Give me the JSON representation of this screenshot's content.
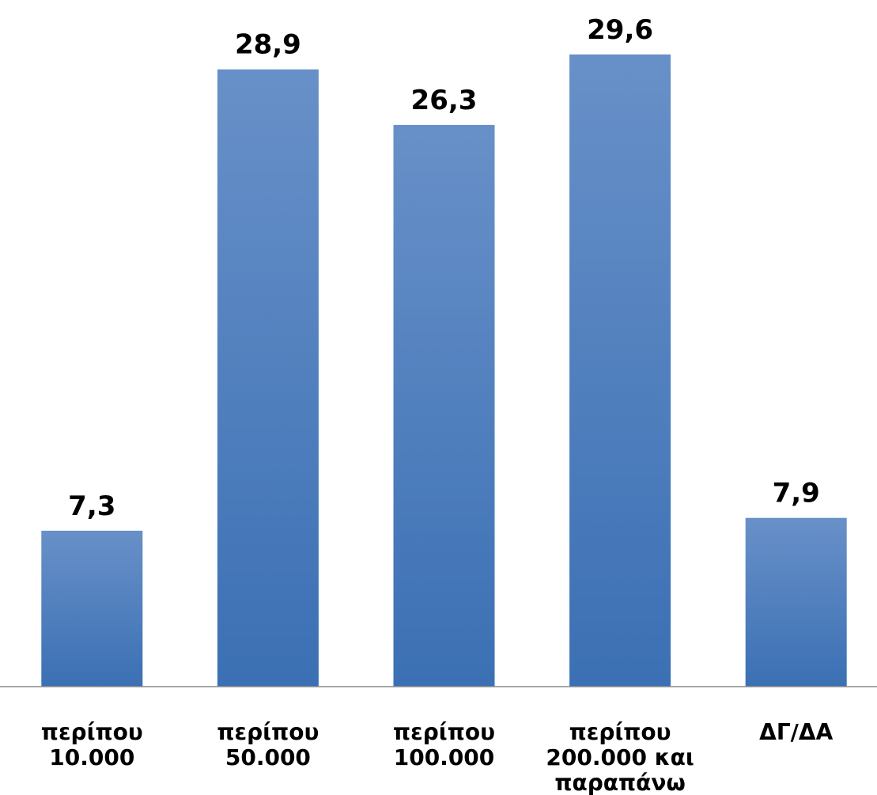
{
  "chart_data": {
    "type": "bar",
    "categories": [
      [
        "περίπου",
        "10.000"
      ],
      [
        "περίπου",
        "50.000"
      ],
      [
        "περίπου",
        "100.000"
      ],
      [
        "περίπου",
        "200.000 και",
        "παραπάνω"
      ],
      [
        "ΔΓ/ΔΑ"
      ]
    ],
    "values": [
      7.3,
      28.9,
      26.3,
      29.6,
      7.9
    ],
    "value_labels": [
      "7,3",
      "28,9",
      "26,3",
      "29,6",
      "7,9"
    ],
    "title": "",
    "xlabel": "",
    "ylabel": "",
    "ylim": [
      0,
      30
    ],
    "grid": false,
    "legend": "none",
    "colors": {
      "bar_top": "#6890c8",
      "bar_bottom": "#3b70b4",
      "axis": "#8c8c8c"
    }
  }
}
